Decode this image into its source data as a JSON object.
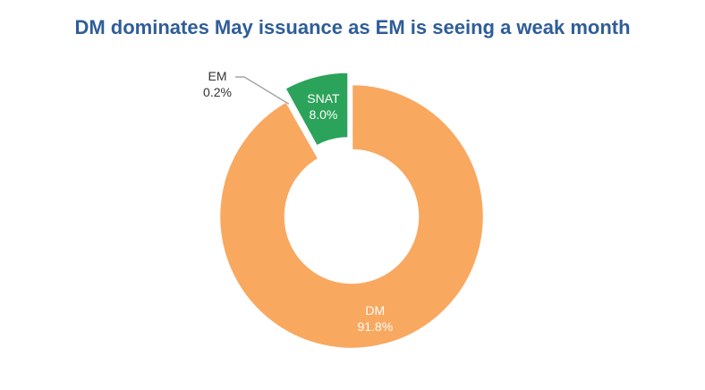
{
  "chart_data": {
    "type": "pie",
    "variant": "donut",
    "title": "DM dominates May issuance as EM is seeing a weak month",
    "categories": [
      "DM",
      "EM",
      "SNAT"
    ],
    "values": [
      91.8,
      0.2,
      8.0
    ],
    "labels": [
      "91.8%",
      "0.2%",
      "8.0%"
    ],
    "colors": [
      "#F9A860",
      "#4A72B8",
      "#2CA35A"
    ],
    "exploded": "SNAT",
    "legend": "none"
  }
}
